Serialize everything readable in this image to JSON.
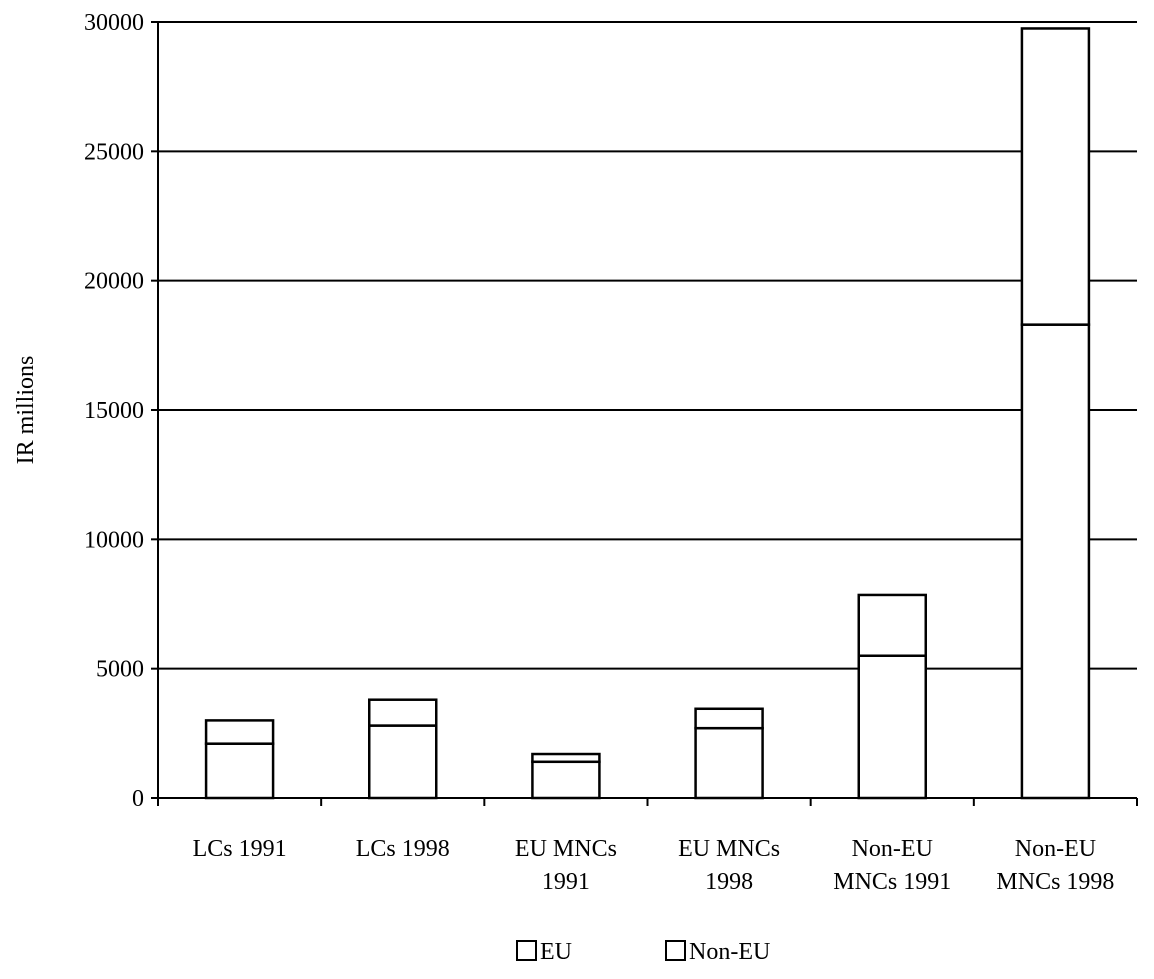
{
  "chart_data": {
    "type": "bar",
    "stacked": true,
    "title": "",
    "xlabel": "",
    "ylabel": "IR millions",
    "ylim": [
      0,
      30000
    ],
    "yticks": [
      0,
      5000,
      10000,
      15000,
      20000,
      25000,
      30000
    ],
    "grid": true,
    "legend_position": "bottom",
    "categories": [
      [
        "LCs  1991"
      ],
      [
        "LCs 1998"
      ],
      [
        "EU MNCs",
        "1991"
      ],
      [
        "EU MNCs",
        "1998"
      ],
      [
        "Non-EU",
        "MNCs 1991"
      ],
      [
        "Non-EU",
        "MNCs 1998"
      ]
    ],
    "series": [
      {
        "name": "EU",
        "values": [
          2100,
          2800,
          1400,
          2700,
          5500,
          18300
        ]
      },
      {
        "name": "Non-EU",
        "values": [
          900,
          1000,
          300,
          750,
          2350,
          11450
        ]
      }
    ],
    "colors": {
      "EU": "#ffffff",
      "Non-EU": "#ffffff",
      "stroke": "#000000"
    }
  }
}
